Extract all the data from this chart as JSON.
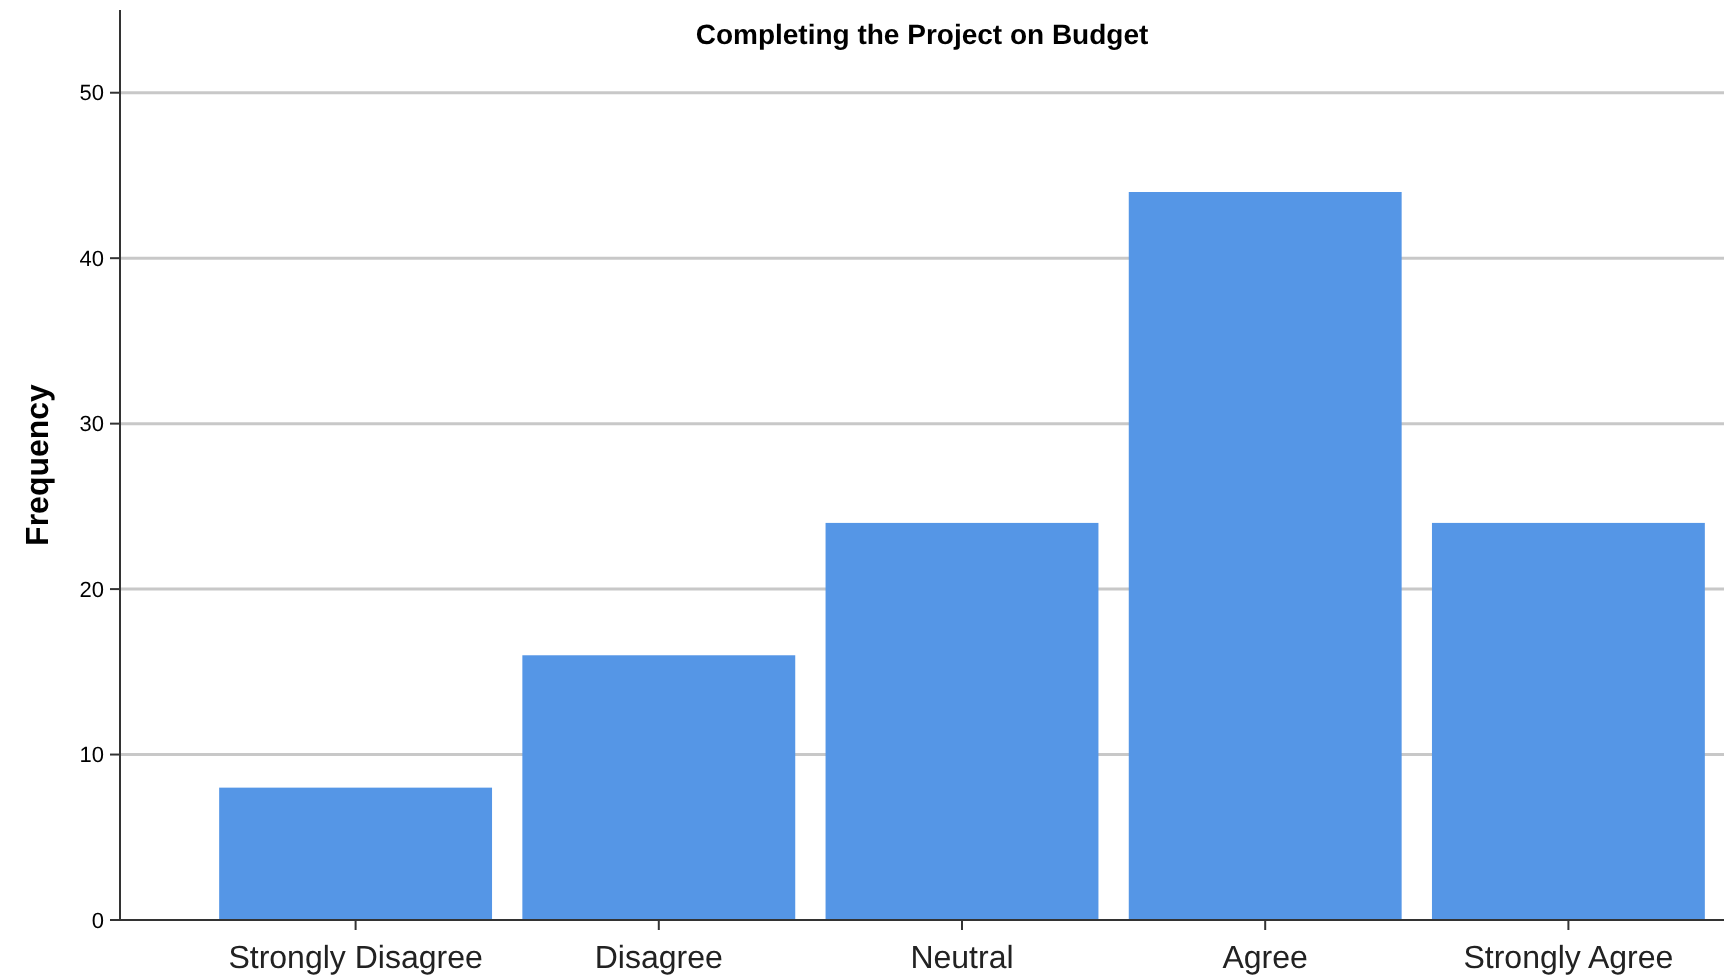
{
  "chart_data": {
    "type": "bar",
    "title": "Completing the Project on Budget",
    "ylabel": "Frequency",
    "categories": [
      "Strongly Disagree",
      "Disagree",
      "Neutral",
      "Agree",
      "Strongly Agree"
    ],
    "values": [
      8,
      16,
      24,
      44,
      24
    ],
    "color": "#5596e6",
    "ylim": [
      0,
      55
    ],
    "yticks": [
      0,
      10,
      20,
      30,
      40,
      50
    ],
    "grid": "y"
  }
}
